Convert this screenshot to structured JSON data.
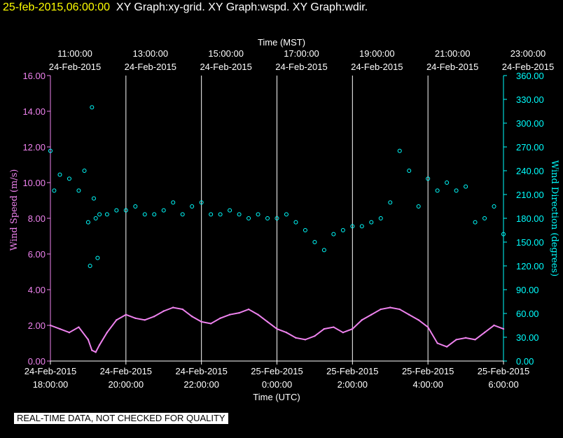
{
  "header": {
    "timestamp": "25-feb-2015,06:00:00",
    "graphs": "XY Graph:xy-grid.  XY Graph:wspd.  XY Graph:wdir."
  },
  "disclaimer": "REAL-TIME DATA, NOT CHECKED FOR QUALITY",
  "colors": {
    "wspd": "#ee82ee",
    "wdir": "#00ffff",
    "grid": "#ffffff",
    "header_ts": "#ffff00",
    "background": "#000000"
  },
  "chart_data": {
    "type": "line",
    "title": "",
    "xlabel_top": "Time (MST)",
    "xlabel_bottom": "Time (UTC)",
    "ylabel_left": "Wind Speed (m/s)",
    "ylabel_right": "Wind Direction (degrees)",
    "ylim_left": [
      0,
      16
    ],
    "ylim_right": [
      0,
      360
    ],
    "xlim_hours_utc": [
      18,
      30
    ],
    "top_ticks": [
      {
        "time": "11:00:00",
        "date": "24-Feb-2015"
      },
      {
        "time": "13:00:00",
        "date": "24-Feb-2015"
      },
      {
        "time": "15:00:00",
        "date": "24-Feb-2015"
      },
      {
        "time": "17:00:00",
        "date": "24-Feb-2015"
      },
      {
        "time": "19:00:00",
        "date": "24-Feb-2015"
      },
      {
        "time": "21:00:00",
        "date": "24-Feb-2015"
      },
      {
        "time": "23:00:00",
        "date": "24-Feb-2015"
      }
    ],
    "bottom_ticks": [
      {
        "date": "24-Feb-2015",
        "time": "18:00:00"
      },
      {
        "date": "24-Feb-2015",
        "time": "20:00:00"
      },
      {
        "date": "24-Feb-2015",
        "time": "22:00:00"
      },
      {
        "date": "25-Feb-2015",
        "time": "0:00:00"
      },
      {
        "date": "25-Feb-2015",
        "time": "2:00:00"
      },
      {
        "date": "25-Feb-2015",
        "time": "4:00:00"
      },
      {
        "date": "25-Feb-2015",
        "time": "6:00:00"
      }
    ],
    "left_ticks": [
      "0.00",
      "2.00",
      "4.00",
      "6.00",
      "8.00",
      "10.00",
      "12.00",
      "14.00",
      "16.00"
    ],
    "right_ticks": [
      "0.00",
      "30.00",
      "60.00",
      "90.00",
      "120.00",
      "150.00",
      "180.00",
      "210.00",
      "240.00",
      "270.00",
      "300.00",
      "330.00",
      "360.00"
    ],
    "grid": "vertical",
    "series": [
      {
        "name": "wspd",
        "axis": "left",
        "style": "line",
        "x_utc_hours": [
          18.0,
          18.25,
          18.5,
          18.75,
          19.0,
          19.1,
          19.2,
          19.3,
          19.5,
          19.75,
          20.0,
          20.25,
          20.5,
          20.75,
          21.0,
          21.25,
          21.5,
          21.75,
          22.0,
          22.25,
          22.5,
          22.75,
          23.0,
          23.25,
          23.5,
          23.75,
          24.0,
          24.25,
          24.5,
          24.75,
          25.0,
          25.25,
          25.5,
          25.75,
          26.0,
          26.25,
          26.5,
          26.75,
          27.0,
          27.25,
          27.5,
          27.75,
          28.0,
          28.25,
          28.5,
          28.75,
          29.0,
          29.25,
          29.5,
          29.75,
          30.0
        ],
        "values": [
          2.0,
          1.8,
          1.6,
          1.9,
          1.2,
          0.6,
          0.5,
          0.9,
          1.6,
          2.3,
          2.6,
          2.4,
          2.3,
          2.5,
          2.8,
          3.0,
          2.9,
          2.5,
          2.2,
          2.1,
          2.4,
          2.6,
          2.7,
          2.9,
          2.6,
          2.2,
          1.8,
          1.6,
          1.3,
          1.2,
          1.4,
          1.8,
          1.9,
          1.6,
          1.8,
          2.3,
          2.6,
          2.9,
          3.0,
          2.9,
          2.6,
          2.3,
          1.9,
          1.0,
          0.8,
          1.2,
          1.3,
          1.2,
          1.6,
          2.0,
          1.8
        ]
      },
      {
        "name": "wdir",
        "axis": "right",
        "style": "scatter",
        "x_utc_hours": [
          18.0,
          18.1,
          18.25,
          18.5,
          18.75,
          18.9,
          19.0,
          19.05,
          19.1,
          19.15,
          19.2,
          19.25,
          19.3,
          19.5,
          19.75,
          20.0,
          20.25,
          20.5,
          20.75,
          21.0,
          21.25,
          21.5,
          21.75,
          22.0,
          22.25,
          22.5,
          22.75,
          23.0,
          23.25,
          23.5,
          23.75,
          24.0,
          24.25,
          24.5,
          24.75,
          25.0,
          25.25,
          25.5,
          25.75,
          26.0,
          26.25,
          26.5,
          26.75,
          27.0,
          27.25,
          27.5,
          27.75,
          28.0,
          28.25,
          28.5,
          28.75,
          29.0,
          29.25,
          29.5,
          29.75,
          30.0
        ],
        "values": [
          265,
          215,
          235,
          230,
          215,
          240,
          175,
          120,
          320,
          205,
          180,
          130,
          185,
          185,
          190,
          190,
          195,
          185,
          185,
          190,
          200,
          185,
          195,
          200,
          185,
          185,
          190,
          185,
          180,
          185,
          180,
          180,
          185,
          175,
          165,
          150,
          140,
          160,
          165,
          170,
          170,
          175,
          180,
          200,
          265,
          240,
          195,
          230,
          215,
          225,
          215,
          220,
          175,
          180,
          195,
          160
        ]
      }
    ]
  }
}
